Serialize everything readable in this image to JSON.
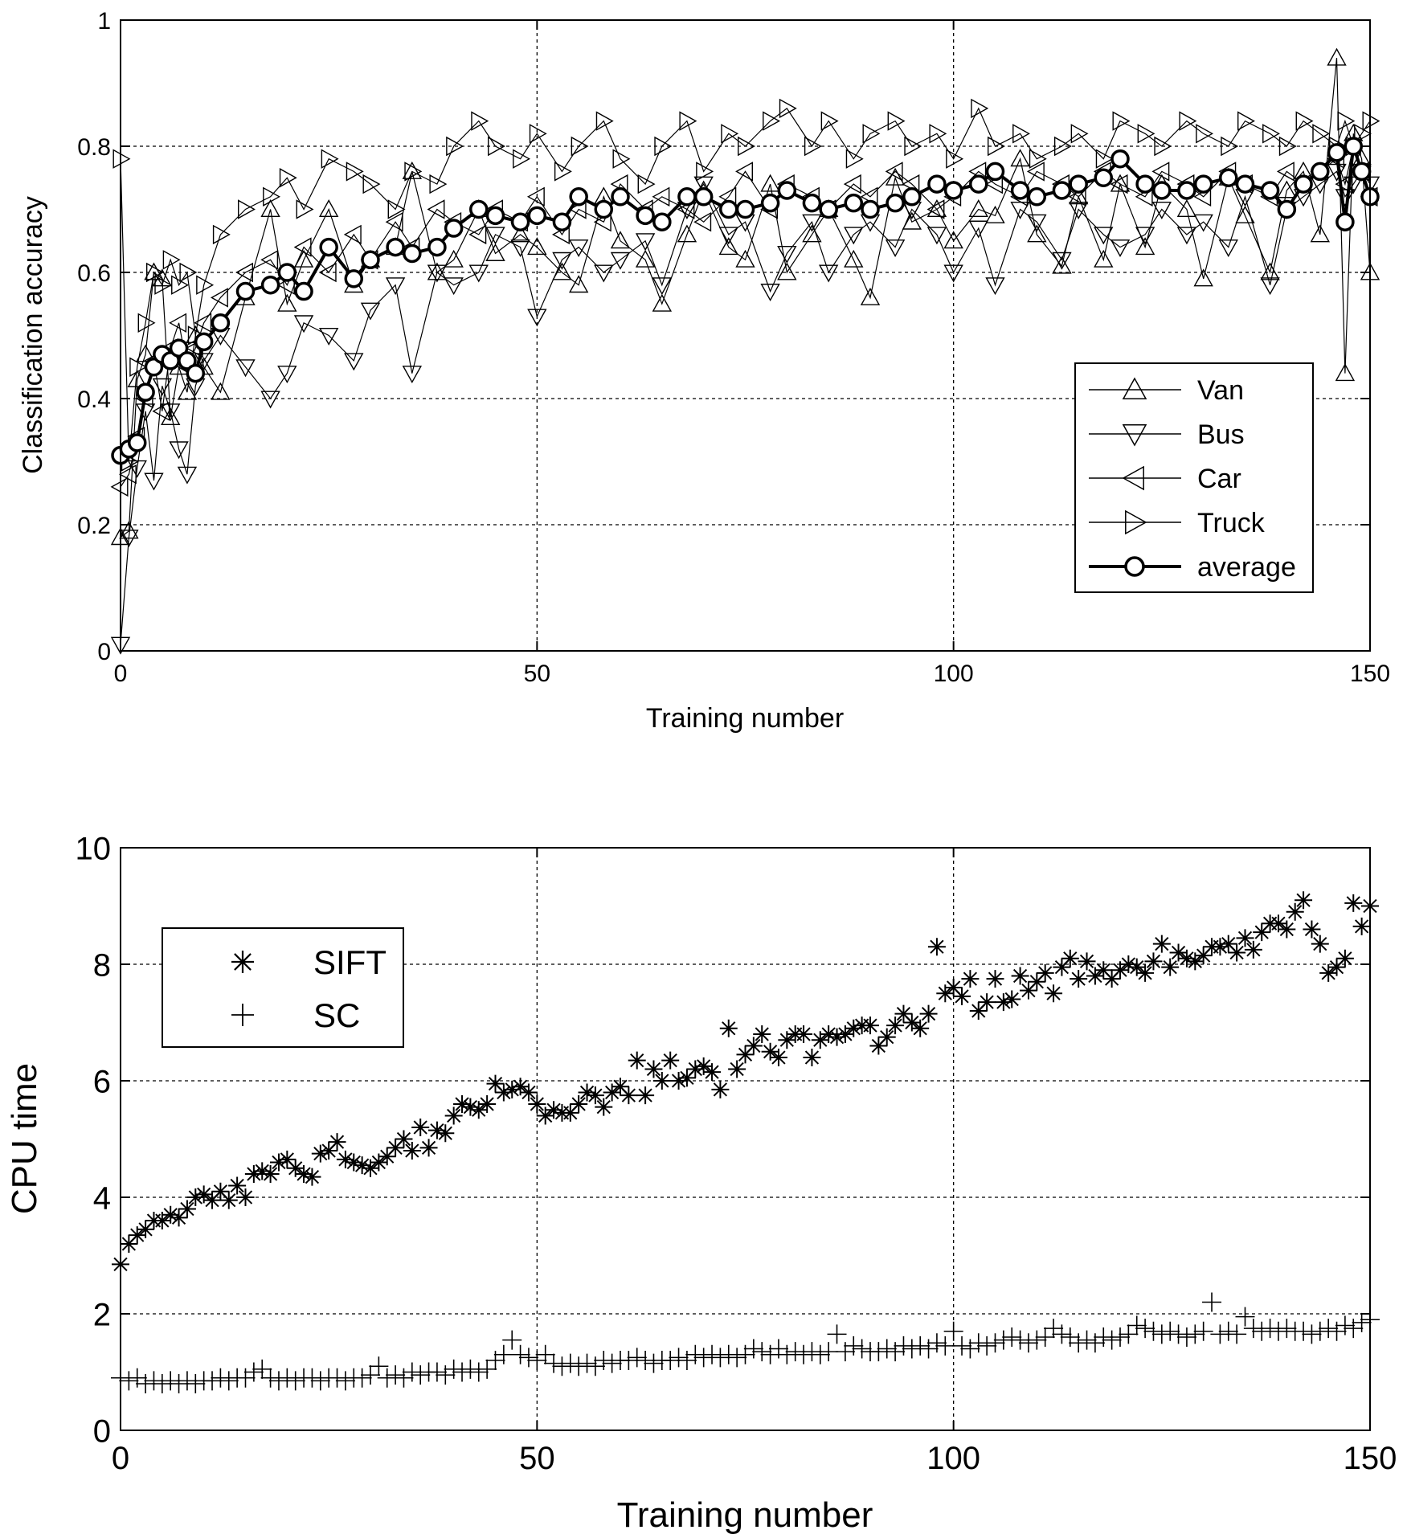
{
  "chart_data": [
    {
      "type": "line",
      "xlabel": "Training number",
      "ylabel": "Classification accuracy",
      "xlim": [
        0,
        150
      ],
      "ylim": [
        0,
        1
      ],
      "xticks": [
        0,
        50,
        100,
        150
      ],
      "yticks": [
        0,
        0.2,
        0.4,
        0.6,
        0.8,
        1
      ],
      "xtick_labels": [
        "0",
        "50",
        "100",
        "150"
      ],
      "ytick_labels": [
        "0",
        "0.2",
        "0.4",
        "0.6",
        "0.8",
        "1"
      ],
      "grid": true,
      "legend_position": "lower-right",
      "x": [
        0,
        1,
        2,
        3,
        4,
        5,
        6,
        7,
        8,
        9,
        10,
        12,
        15,
        18,
        20,
        22,
        25,
        28,
        30,
        33,
        35,
        38,
        40,
        43,
        45,
        48,
        50,
        53,
        55,
        58,
        60,
        63,
        65,
        68,
        70,
        73,
        75,
        78,
        80,
        83,
        85,
        88,
        90,
        93,
        95,
        98,
        100,
        103,
        105,
        108,
        110,
        113,
        115,
        118,
        120,
        123,
        125,
        128,
        130,
        133,
        135,
        138,
        140,
        142,
        144,
        146,
        147,
        148,
        149,
        150
      ],
      "series": [
        {
          "name": "Van",
          "marker": "triangle-up",
          "values": [
            0.18,
            0.19,
            0.43,
            0.47,
            0.6,
            0.59,
            0.37,
            0.45,
            0.41,
            0.5,
            0.45,
            0.41,
            0.56,
            0.7,
            0.55,
            0.62,
            0.7,
            0.58,
            0.62,
            0.64,
            0.76,
            0.6,
            0.62,
            0.7,
            0.63,
            0.66,
            0.64,
            0.6,
            0.58,
            0.72,
            0.65,
            0.62,
            0.55,
            0.66,
            0.73,
            0.64,
            0.62,
            0.74,
            0.6,
            0.66,
            0.7,
            0.62,
            0.56,
            0.75,
            0.68,
            0.7,
            0.65,
            0.7,
            0.69,
            0.78,
            0.66,
            0.61,
            0.72,
            0.62,
            0.74,
            0.64,
            0.74,
            0.7,
            0.59,
            0.75,
            0.69,
            0.6,
            0.73,
            0.76,
            0.66,
            0.94,
            0.44,
            0.82,
            0.78,
            0.6
          ]
        },
        {
          "name": "Bus",
          "marker": "triangle-down",
          "values": [
            0.01,
            0.18,
            0.29,
            0.38,
            0.27,
            0.42,
            0.38,
            0.32,
            0.28,
            0.42,
            0.46,
            0.5,
            0.45,
            0.4,
            0.44,
            0.52,
            0.5,
            0.46,
            0.54,
            0.58,
            0.44,
            0.6,
            0.58,
            0.6,
            0.66,
            0.64,
            0.53,
            0.62,
            0.64,
            0.6,
            0.62,
            0.65,
            0.58,
            0.7,
            0.74,
            0.66,
            0.68,
            0.57,
            0.63,
            0.68,
            0.6,
            0.66,
            0.68,
            0.64,
            0.7,
            0.66,
            0.6,
            0.67,
            0.58,
            0.7,
            0.68,
            0.62,
            0.7,
            0.66,
            0.64,
            0.66,
            0.7,
            0.66,
            0.68,
            0.64,
            0.72,
            0.58,
            0.7,
            0.72,
            0.74,
            0.76,
            0.72,
            0.74,
            0.76,
            0.74
          ]
        },
        {
          "name": "Car",
          "marker": "triangle-left",
          "values": [
            0.26,
            0.28,
            0.34,
            0.4,
            0.46,
            0.38,
            0.48,
            0.52,
            0.45,
            0.48,
            0.52,
            0.56,
            0.6,
            0.62,
            0.58,
            0.64,
            0.6,
            0.66,
            0.62,
            0.68,
            0.64,
            0.7,
            0.68,
            0.66,
            0.7,
            0.68,
            0.72,
            0.66,
            0.7,
            0.68,
            0.74,
            0.7,
            0.72,
            0.7,
            0.68,
            0.72,
            0.76,
            0.7,
            0.74,
            0.72,
            0.7,
            0.74,
            0.72,
            0.76,
            0.74,
            0.7,
            0.72,
            0.76,
            0.74,
            0.72,
            0.76,
            0.74,
            0.72,
            0.76,
            0.74,
            0.72,
            0.76,
            0.74,
            0.72,
            0.76,
            0.74,
            0.72,
            0.76,
            0.74,
            0.76,
            0.78,
            0.74,
            0.8,
            0.76,
            0.72
          ]
        },
        {
          "name": "Truck",
          "marker": "triangle-right",
          "values": [
            0.78,
            0.3,
            0.45,
            0.52,
            0.6,
            0.58,
            0.62,
            0.58,
            0.6,
            0.5,
            0.58,
            0.66,
            0.7,
            0.72,
            0.75,
            0.7,
            0.78,
            0.76,
            0.74,
            0.7,
            0.76,
            0.74,
            0.8,
            0.84,
            0.8,
            0.78,
            0.82,
            0.76,
            0.8,
            0.84,
            0.78,
            0.74,
            0.8,
            0.84,
            0.76,
            0.82,
            0.8,
            0.84,
            0.86,
            0.8,
            0.84,
            0.78,
            0.82,
            0.84,
            0.8,
            0.82,
            0.78,
            0.86,
            0.8,
            0.82,
            0.78,
            0.8,
            0.82,
            0.78,
            0.84,
            0.82,
            0.8,
            0.84,
            0.82,
            0.8,
            0.84,
            0.82,
            0.8,
            0.84,
            0.82,
            0.8,
            0.84,
            0.8,
            0.82,
            0.84
          ]
        },
        {
          "name": "average",
          "marker": "circle",
          "values": [
            0.31,
            0.32,
            0.33,
            0.41,
            0.45,
            0.47,
            0.46,
            0.48,
            0.46,
            0.44,
            0.49,
            0.52,
            0.57,
            0.58,
            0.6,
            0.57,
            0.64,
            0.59,
            0.62,
            0.64,
            0.63,
            0.64,
            0.67,
            0.7,
            0.69,
            0.68,
            0.69,
            0.68,
            0.72,
            0.7,
            0.72,
            0.69,
            0.68,
            0.72,
            0.72,
            0.7,
            0.7,
            0.71,
            0.73,
            0.71,
            0.7,
            0.71,
            0.7,
            0.71,
            0.72,
            0.74,
            0.73,
            0.74,
            0.76,
            0.73,
            0.72,
            0.73,
            0.74,
            0.75,
            0.78,
            0.74,
            0.73,
            0.73,
            0.74,
            0.75,
            0.74,
            0.73,
            0.7,
            0.74,
            0.76,
            0.79,
            0.68,
            0.8,
            0.76,
            0.72
          ]
        }
      ]
    },
    {
      "type": "scatter",
      "xlabel": "Training number",
      "ylabel": "CPU time",
      "xlim": [
        0,
        150
      ],
      "ylim": [
        0,
        10
      ],
      "xticks": [
        0,
        50,
        100,
        150
      ],
      "yticks": [
        0,
        2,
        4,
        6,
        8,
        10
      ],
      "xtick_labels": [
        "0",
        "50",
        "100",
        "150"
      ],
      "ytick_labels": [
        "0",
        "2",
        "4",
        "6",
        "8",
        "10"
      ],
      "grid": true,
      "legend_position": "upper-left",
      "x": [
        0,
        1,
        2,
        3,
        4,
        5,
        6,
        7,
        8,
        9,
        10,
        11,
        12,
        13,
        14,
        15,
        16,
        17,
        18,
        19,
        20,
        21,
        22,
        23,
        24,
        25,
        26,
        27,
        28,
        29,
        30,
        31,
        32,
        33,
        34,
        35,
        36,
        37,
        38,
        39,
        40,
        41,
        42,
        43,
        44,
        45,
        46,
        47,
        48,
        49,
        50,
        51,
        52,
        53,
        54,
        55,
        56,
        57,
        58,
        59,
        60,
        61,
        62,
        63,
        64,
        65,
        66,
        67,
        68,
        69,
        70,
        71,
        72,
        73,
        74,
        75,
        76,
        77,
        78,
        79,
        80,
        81,
        82,
        83,
        84,
        85,
        86,
        87,
        88,
        89,
        90,
        91,
        92,
        93,
        94,
        95,
        96,
        97,
        98,
        99,
        100,
        101,
        102,
        103,
        104,
        105,
        106,
        107,
        108,
        109,
        110,
        111,
        112,
        113,
        114,
        115,
        116,
        117,
        118,
        119,
        120,
        121,
        122,
        123,
        124,
        125,
        126,
        127,
        128,
        129,
        130,
        131,
        132,
        133,
        134,
        135,
        136,
        137,
        138,
        139,
        140,
        141,
        142,
        143,
        144,
        145,
        146,
        147,
        148,
        149,
        150
      ],
      "series": [
        {
          "name": "SIFT",
          "marker": "asterisk",
          "values": [
            2.85,
            3.2,
            3.35,
            3.45,
            3.6,
            3.6,
            3.7,
            3.65,
            3.8,
            4.0,
            4.05,
            3.95,
            4.1,
            3.95,
            4.2,
            4.0,
            4.4,
            4.45,
            4.4,
            4.6,
            4.65,
            4.5,
            4.4,
            4.35,
            4.75,
            4.8,
            4.95,
            4.65,
            4.6,
            4.55,
            4.5,
            4.6,
            4.7,
            4.85,
            5.0,
            4.8,
            5.2,
            4.85,
            5.15,
            5.1,
            5.4,
            5.6,
            5.55,
            5.5,
            5.6,
            5.95,
            5.8,
            5.85,
            5.9,
            5.8,
            5.6,
            5.4,
            5.5,
            5.45,
            5.45,
            5.6,
            5.8,
            5.75,
            5.55,
            5.8,
            5.9,
            5.75,
            6.35,
            5.75,
            6.2,
            6.0,
            6.35,
            6.0,
            6.05,
            6.2,
            6.25,
            6.15,
            5.85,
            6.9,
            6.2,
            6.45,
            6.6,
            6.8,
            6.5,
            6.4,
            6.7,
            6.8,
            6.8,
            6.4,
            6.7,
            6.8,
            6.75,
            6.8,
            6.9,
            6.95,
            6.95,
            6.6,
            6.75,
            6.95,
            7.15,
            7.0,
            6.9,
            7.15,
            8.3,
            7.5,
            7.6,
            7.45,
            7.75,
            7.2,
            7.35,
            7.75,
            7.35,
            7.4,
            7.8,
            7.55,
            7.7,
            7.85,
            7.5,
            7.95,
            8.1,
            7.75,
            8.05,
            7.8,
            7.9,
            7.75,
            7.9,
            8.0,
            7.95,
            7.85,
            8.05,
            8.35,
            7.95,
            8.2,
            8.1,
            8.05,
            8.15,
            8.3,
            8.3,
            8.35,
            8.2,
            8.45,
            8.25,
            8.55,
            8.7,
            8.7,
            8.6,
            8.9,
            9.1,
            8.6,
            8.35,
            7.85,
            7.95,
            8.1,
            9.05,
            8.65,
            9.0
          ]
        },
        {
          "name": "SC",
          "marker": "plus",
          "values": [
            0.9,
            0.85,
            0.9,
            0.8,
            0.85,
            0.8,
            0.85,
            0.8,
            0.85,
            0.8,
            0.85,
            0.85,
            0.9,
            0.85,
            0.9,
            0.9,
            1.0,
            1.05,
            0.9,
            0.85,
            0.9,
            0.85,
            0.9,
            0.9,
            0.85,
            0.9,
            0.9,
            0.85,
            0.9,
            0.9,
            0.95,
            1.1,
            0.9,
            0.95,
            0.9,
            1.0,
            0.95,
            1.0,
            1.0,
            0.95,
            1.05,
            1.0,
            1.05,
            1.0,
            1.05,
            1.2,
            1.3,
            1.55,
            1.3,
            1.25,
            1.2,
            1.3,
            1.15,
            1.1,
            1.15,
            1.1,
            1.15,
            1.1,
            1.2,
            1.15,
            1.2,
            1.2,
            1.25,
            1.2,
            1.15,
            1.2,
            1.2,
            1.25,
            1.2,
            1.3,
            1.25,
            1.3,
            1.25,
            1.3,
            1.25,
            1.3,
            1.4,
            1.35,
            1.3,
            1.4,
            1.3,
            1.35,
            1.3,
            1.35,
            1.3,
            1.35,
            1.65,
            1.35,
            1.45,
            1.4,
            1.35,
            1.35,
            1.4,
            1.35,
            1.45,
            1.4,
            1.45,
            1.4,
            1.5,
            1.45,
            1.7,
            1.45,
            1.4,
            1.5,
            1.45,
            1.5,
            1.55,
            1.6,
            1.55,
            1.5,
            1.55,
            1.6,
            1.75,
            1.65,
            1.6,
            1.5,
            1.55,
            1.5,
            1.6,
            1.55,
            1.6,
            1.65,
            1.8,
            1.75,
            1.7,
            1.65,
            1.7,
            1.65,
            1.6,
            1.65,
            1.7,
            2.2,
            1.65,
            1.7,
            1.65,
            1.95,
            1.75,
            1.7,
            1.75,
            1.7,
            1.75,
            1.7,
            1.7,
            1.65,
            1.7,
            1.75,
            1.7,
            1.8,
            1.75,
            1.85,
            1.9
          ]
        }
      ]
    }
  ]
}
